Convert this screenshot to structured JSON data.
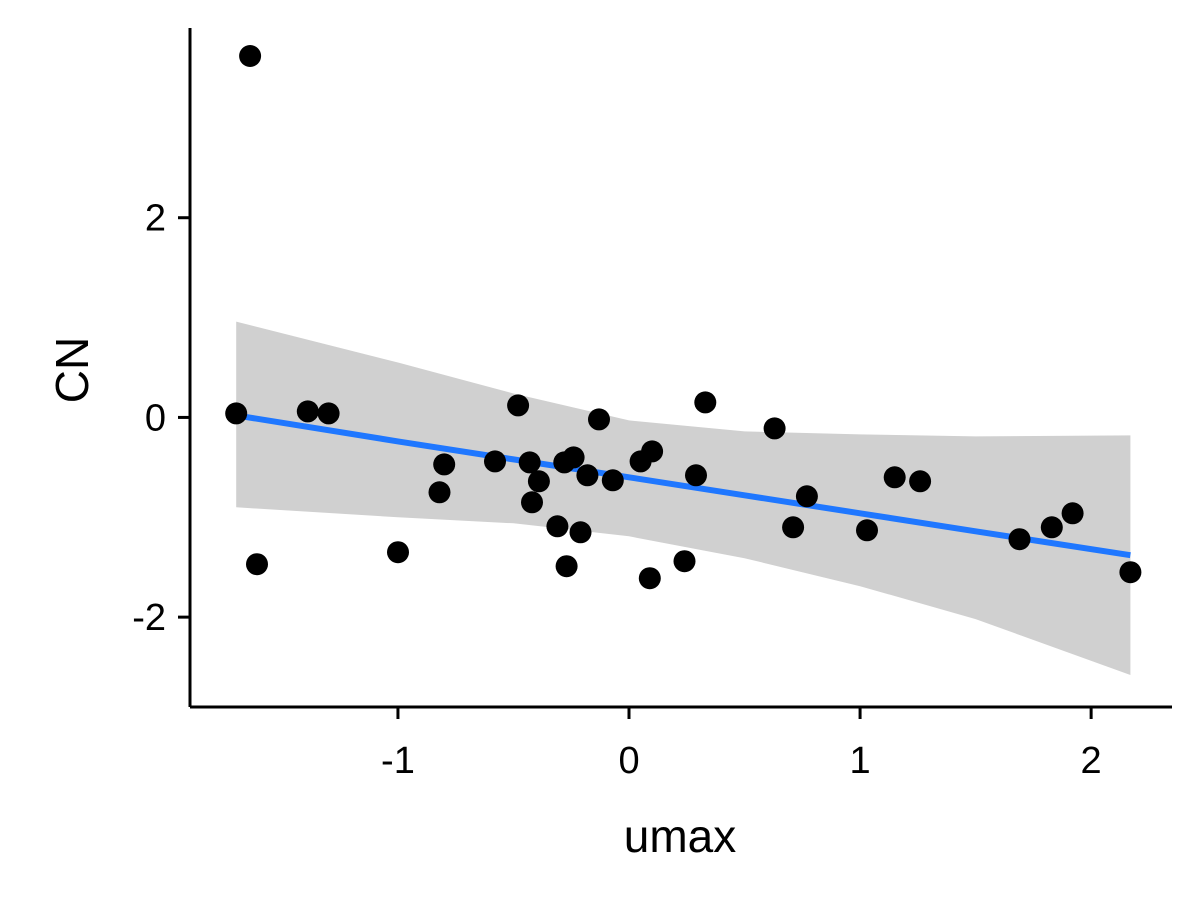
{
  "chart_data": {
    "type": "scatter",
    "title": "",
    "xlabel": "umax",
    "ylabel": "CN",
    "xlim": [
      -1.9,
      2.35
    ],
    "ylim": [
      -2.9,
      3.9
    ],
    "x_ticks": [
      -1,
      0,
      1,
      2
    ],
    "x_tick_labels": [
      "-1",
      "0",
      "1",
      "2"
    ],
    "y_ticks": [
      -2,
      0,
      2
    ],
    "y_tick_labels": [
      "-2",
      "0",
      "2"
    ],
    "grid": false,
    "legend": "none",
    "colors": {
      "points": "#000000",
      "fit_line": "#1f77ff",
      "confidence_band": "#d0d0d0",
      "axis": "#000000"
    },
    "points": [
      {
        "x": -1.7,
        "y": 0.04
      },
      {
        "x": -1.64,
        "y": 3.62
      },
      {
        "x": -1.61,
        "y": -1.47
      },
      {
        "x": -1.39,
        "y": 0.06
      },
      {
        "x": -1.3,
        "y": 0.04
      },
      {
        "x": -1.0,
        "y": -1.35
      },
      {
        "x": -0.82,
        "y": -0.75
      },
      {
        "x": -0.8,
        "y": -0.47
      },
      {
        "x": -0.58,
        "y": -0.44
      },
      {
        "x": -0.48,
        "y": 0.12
      },
      {
        "x": -0.43,
        "y": -0.45
      },
      {
        "x": -0.42,
        "y": -0.85
      },
      {
        "x": -0.39,
        "y": -0.64
      },
      {
        "x": -0.31,
        "y": -1.09
      },
      {
        "x": -0.28,
        "y": -0.45
      },
      {
        "x": -0.27,
        "y": -1.49
      },
      {
        "x": -0.24,
        "y": -0.4
      },
      {
        "x": -0.21,
        "y": -1.15
      },
      {
        "x": -0.18,
        "y": -0.58
      },
      {
        "x": -0.13,
        "y": -0.02
      },
      {
        "x": -0.07,
        "y": -0.63
      },
      {
        "x": 0.05,
        "y": -0.44
      },
      {
        "x": 0.09,
        "y": -1.61
      },
      {
        "x": 0.1,
        "y": -0.34
      },
      {
        "x": 0.24,
        "y": -1.44
      },
      {
        "x": 0.29,
        "y": -0.58
      },
      {
        "x": 0.33,
        "y": 0.15
      },
      {
        "x": 0.63,
        "y": -0.11
      },
      {
        "x": 0.71,
        "y": -1.1
      },
      {
        "x": 0.77,
        "y": -0.79
      },
      {
        "x": 1.03,
        "y": -1.13
      },
      {
        "x": 1.15,
        "y": -0.6
      },
      {
        "x": 1.26,
        "y": -0.64
      },
      {
        "x": 1.69,
        "y": -1.22
      },
      {
        "x": 1.83,
        "y": -1.1
      },
      {
        "x": 1.92,
        "y": -0.96
      },
      {
        "x": 2.17,
        "y": -1.55
      }
    ],
    "fit": {
      "x": [
        -1.7,
        -1.0,
        -0.5,
        0.0,
        0.5,
        1.0,
        1.5,
        2.17
      ],
      "y": [
        0.02,
        -0.24,
        -0.42,
        -0.6,
        -0.78,
        -0.96,
        -1.14,
        -1.38
      ],
      "ci_lower": [
        -0.9,
        -1.0,
        -1.06,
        -1.19,
        -1.41,
        -1.69,
        -2.02,
        -2.58
      ],
      "ci_upper": [
        0.96,
        0.55,
        0.24,
        -0.03,
        -0.14,
        -0.17,
        -0.19,
        -0.18
      ]
    }
  }
}
